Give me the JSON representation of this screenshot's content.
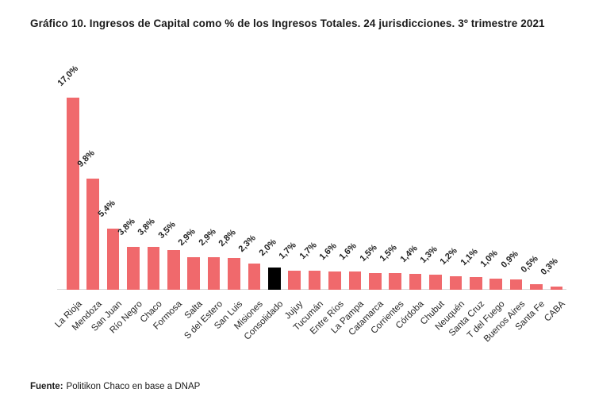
{
  "title": "Gráfico 10. Ingresos de Capital como % de los Ingresos Totales. 24 jurisdicciones. 3º trimestre 2021",
  "source": {
    "label": "Fuente:",
    "text": "Politikon Chaco en base a DNAP"
  },
  "chart_data": {
    "type": "bar",
    "title": "Gráfico 10. Ingresos de Capital como % de los Ingresos Totales. 24 jurisdicciones. 3º trimestre 2021",
    "categories": [
      "La Rioja",
      "Mendoza",
      "San Juan",
      "Río Negro",
      "Chaco",
      "Formosa",
      "Salta",
      "S del Estero",
      "San Luis",
      "Misiones",
      "Consolidado",
      "Jujuy",
      "Tucumán",
      "Entre Ríos",
      "La Pampa",
      "Catamarca",
      "Corrientes",
      "Córdoba",
      "Chubut",
      "Neuquén",
      "Santa Cruz",
      "T del Fuego",
      "Buenos Aires",
      "Santa Fe",
      "CABA"
    ],
    "values": [
      17.0,
      9.8,
      5.4,
      3.8,
      3.8,
      3.5,
      2.9,
      2.9,
      2.8,
      2.3,
      2.0,
      1.7,
      1.7,
      1.6,
      1.6,
      1.5,
      1.5,
      1.4,
      1.3,
      1.2,
      1.1,
      1.0,
      0.9,
      0.5,
      0.3
    ],
    "value_labels": [
      "17,0%",
      "9,8%",
      "5,4%",
      "3,8%",
      "3,8%",
      "3,5%",
      "2,9%",
      "2,9%",
      "2,8%",
      "2,3%",
      "2,0%",
      "1,7%",
      "1,7%",
      "1,6%",
      "1,6%",
      "1,5%",
      "1,5%",
      "1,4%",
      "1,3%",
      "1,2%",
      "1,1%",
      "1,0%",
      "0,9%",
      "0,5%",
      "0,3%"
    ],
    "highlight_category": "Consolidado",
    "highlight_index": 10,
    "bar_color": "#F0696C",
    "highlight_color": "#000000",
    "axis_color": "#d9d9d9",
    "xlabel": "",
    "ylabel": "",
    "ylim": [
      0,
      17
    ],
    "grid": false,
    "legend": false,
    "label_rotation_deg": 45,
    "decimal_separator": ","
  }
}
